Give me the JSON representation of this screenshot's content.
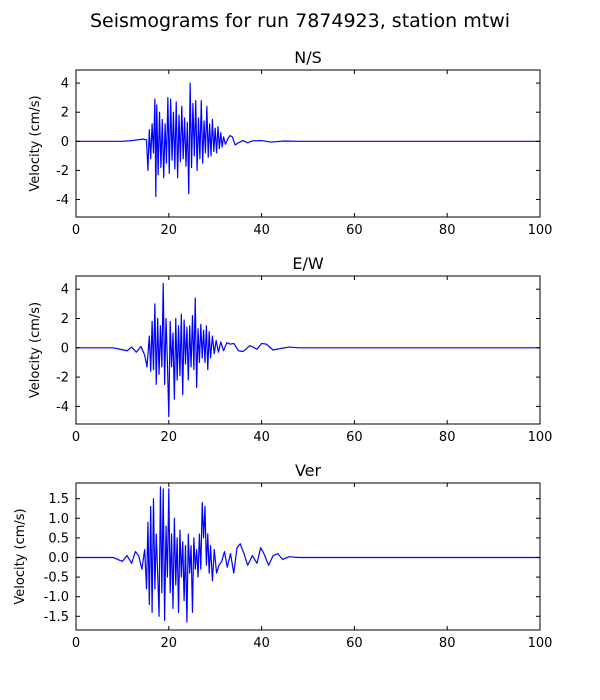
{
  "figure": {
    "title": "Seismograms for run 7874923, station mtwi"
  },
  "colors": {
    "trace": "#0000ff",
    "axes": "#000000",
    "background": "#ffffff"
  },
  "chart_data": [
    {
      "type": "line",
      "title": "N/S",
      "xlabel": "",
      "ylabel": "Velocity (cm/s)",
      "xlim": [
        0,
        100
      ],
      "ylim": [
        -5.2,
        4.9
      ],
      "xticks": [
        0,
        20,
        40,
        60,
        80,
        100
      ],
      "yticks": [
        -4,
        -2,
        0,
        2,
        4
      ],
      "grid": false,
      "series": [
        {
          "x": [
            0,
            10,
            12,
            14.5,
            15.2,
            15.5,
            15.8,
            16.1,
            16.4,
            16.7,
            17.0,
            17.2,
            17.4,
            17.7,
            18.0,
            18.3,
            18.6,
            18.9,
            19.2,
            19.5,
            19.8,
            20.1,
            20.4,
            20.7,
            21.0,
            21.3,
            21.6,
            21.9,
            22.2,
            22.5,
            22.8,
            23.1,
            23.4,
            23.7,
            24.0,
            24.3,
            24.6,
            24.9,
            25.2,
            25.5,
            25.8,
            26.1,
            26.4,
            26.7,
            27.0,
            27.3,
            27.6,
            27.9,
            28.2,
            28.5,
            28.8,
            29.1,
            29.4,
            29.7,
            30.0,
            30.3,
            30.6,
            30.9,
            31.2,
            31.5,
            31.8,
            32.2,
            32.7,
            33.2,
            33.7,
            34.3,
            35.0,
            36.0,
            37.0,
            38.0,
            40.0,
            42.0,
            45.0,
            48.0,
            60.0,
            100.0
          ],
          "y": [
            0,
            0,
            0.05,
            0.15,
            0.1,
            -2.0,
            0.8,
            -1.2,
            1.2,
            -0.8,
            2.9,
            -3.8,
            2.5,
            -2.3,
            2.0,
            -1.8,
            1.5,
            -2.5,
            1.2,
            -1.5,
            3.0,
            -2.2,
            2.9,
            -1.3,
            2.0,
            -1.9,
            2.7,
            -2.5,
            1.8,
            -1.4,
            2.4,
            -1.2,
            1.6,
            -1.7,
            1.3,
            -3.6,
            4.0,
            -1.8,
            2.6,
            -1.0,
            2.8,
            -2.0,
            1.6,
            -1.2,
            2.8,
            -1.5,
            1.4,
            -0.8,
            2.4,
            -1.1,
            1.2,
            -1.0,
            1.5,
            -0.7,
            0.9,
            -0.8,
            1.0,
            -0.5,
            0.6,
            -0.4,
            0.3,
            -0.2,
            0.15,
            0.4,
            0.3,
            -0.25,
            -0.1,
            0.05,
            -0.1,
            0.03,
            0.05,
            -0.05,
            0.02,
            0,
            0,
            0
          ]
        }
      ]
    },
    {
      "type": "line",
      "title": "E/W",
      "xlabel": "",
      "ylabel": "Velocity (cm/s)",
      "xlim": [
        0,
        100
      ],
      "ylim": [
        -5.2,
        4.9
      ],
      "xticks": [
        0,
        20,
        40,
        60,
        80,
        100
      ],
      "yticks": [
        -4,
        -2,
        0,
        2,
        4
      ],
      "grid": false,
      "series": [
        {
          "x": [
            0,
            8.0,
            9.5,
            11.0,
            12.0,
            13.0,
            14.0,
            14.8,
            15.3,
            15.8,
            16.1,
            16.4,
            16.7,
            17.0,
            17.3,
            17.6,
            17.9,
            18.2,
            18.5,
            18.8,
            19.1,
            19.4,
            19.7,
            20.0,
            20.3,
            20.6,
            20.9,
            21.2,
            21.5,
            21.8,
            22.1,
            22.4,
            22.7,
            23.0,
            23.3,
            23.6,
            23.9,
            24.2,
            24.5,
            24.8,
            25.1,
            25.4,
            25.7,
            26.0,
            26.3,
            26.6,
            26.9,
            27.2,
            27.5,
            27.8,
            28.1,
            28.4,
            28.7,
            29.0,
            29.4,
            29.8,
            30.2,
            30.7,
            31.2,
            31.8,
            32.5,
            33.3,
            34.0,
            35.0,
            36.0,
            37.5,
            39.0,
            40.0,
            41.0,
            42.5,
            44.0,
            46.0,
            48.0,
            60.0,
            100.0
          ],
          "y": [
            0,
            0,
            -0.1,
            -0.2,
            0.05,
            -0.3,
            0.1,
            -0.5,
            -1.3,
            0.8,
            -1.6,
            1.8,
            -1.5,
            3.0,
            -2.5,
            2.0,
            -1.8,
            1.5,
            -1.3,
            4.4,
            -2.5,
            2.0,
            -1.0,
            -4.7,
            1.8,
            -1.3,
            1.0,
            -3.5,
            2.0,
            -2.2,
            1.5,
            -1.9,
            2.3,
            -3.2,
            1.9,
            -1.1,
            1.4,
            -2.2,
            1.5,
            -1.3,
            2.2,
            -1.5,
            3.4,
            -2.7,
            1.3,
            -1.0,
            1.6,
            -0.7,
            1.2,
            -1.0,
            1.5,
            -1.5,
            1.1,
            -0.7,
            0.8,
            -0.4,
            0.5,
            -0.3,
            0.4,
            -0.2,
            0.35,
            0.25,
            0.3,
            -0.2,
            -0.25,
            0.15,
            -0.1,
            0.3,
            0.25,
            -0.15,
            -0.05,
            0.05,
            0,
            0,
            0
          ]
        }
      ]
    },
    {
      "type": "line",
      "title": "Ver",
      "xlabel": "",
      "ylabel": "Velocity (cm/s)",
      "xlim": [
        0,
        100
      ],
      "ylim": [
        -1.85,
        1.9
      ],
      "xticks": [
        0,
        20,
        40,
        60,
        80,
        100
      ],
      "yticks": [
        -1.5,
        -1.0,
        -0.5,
        0.0,
        0.5,
        1.0,
        1.5
      ],
      "grid": false,
      "series": [
        {
          "x": [
            0,
            8.0,
            9.0,
            10.0,
            11.0,
            12.0,
            12.8,
            13.5,
            14.2,
            14.8,
            15.2,
            15.5,
            15.8,
            16.1,
            16.4,
            16.7,
            17.0,
            17.3,
            17.6,
            17.9,
            18.2,
            18.5,
            18.8,
            19.1,
            19.4,
            19.7,
            20.0,
            20.3,
            20.6,
            20.9,
            21.2,
            21.5,
            21.8,
            22.1,
            22.4,
            22.7,
            23.0,
            23.3,
            23.6,
            23.9,
            24.2,
            24.5,
            24.8,
            25.1,
            25.4,
            25.7,
            26.0,
            26.3,
            26.6,
            26.9,
            27.2,
            27.5,
            27.8,
            28.1,
            28.4,
            28.7,
            29.0,
            29.4,
            29.8,
            30.3,
            30.8,
            31.4,
            32.0,
            32.6,
            33.3,
            34.0,
            34.7,
            35.4,
            36.2,
            37.0,
            38.0,
            39.0,
            39.8,
            40.5,
            41.5,
            42.5,
            43.5,
            44.5,
            46.0,
            48.0,
            60.0,
            100.0
          ],
          "y": [
            0,
            0,
            -0.05,
            -0.1,
            0.05,
            -0.15,
            0.15,
            0.05,
            -0.3,
            0.2,
            -0.8,
            0.9,
            -1.2,
            1.3,
            -1.4,
            1.5,
            -0.8,
            0.6,
            -0.4,
            -1.5,
            1.8,
            -0.9,
            1.75,
            -1.6,
            0.8,
            -0.5,
            1.75,
            -0.9,
            0.6,
            -1.3,
            1.0,
            -0.7,
            0.5,
            -1.4,
            0.7,
            -0.5,
            0.4,
            -1.1,
            0.3,
            -1.65,
            0.6,
            -0.4,
            0.3,
            -1.4,
            0.5,
            -0.3,
            0.2,
            -0.5,
            0.6,
            -0.3,
            1.4,
            0.5,
            1.3,
            -0.2,
            0.6,
            -0.4,
            0.3,
            -0.6,
            0.2,
            -0.4,
            -0.2,
            -0.1,
            0.15,
            -0.25,
            0.1,
            -0.4,
            0.25,
            0.35,
            0.1,
            -0.2,
            0.05,
            -0.15,
            0.25,
            0.1,
            -0.2,
            0.05,
            0.1,
            -0.05,
            0.02,
            0,
            0,
            0
          ]
        }
      ]
    }
  ]
}
